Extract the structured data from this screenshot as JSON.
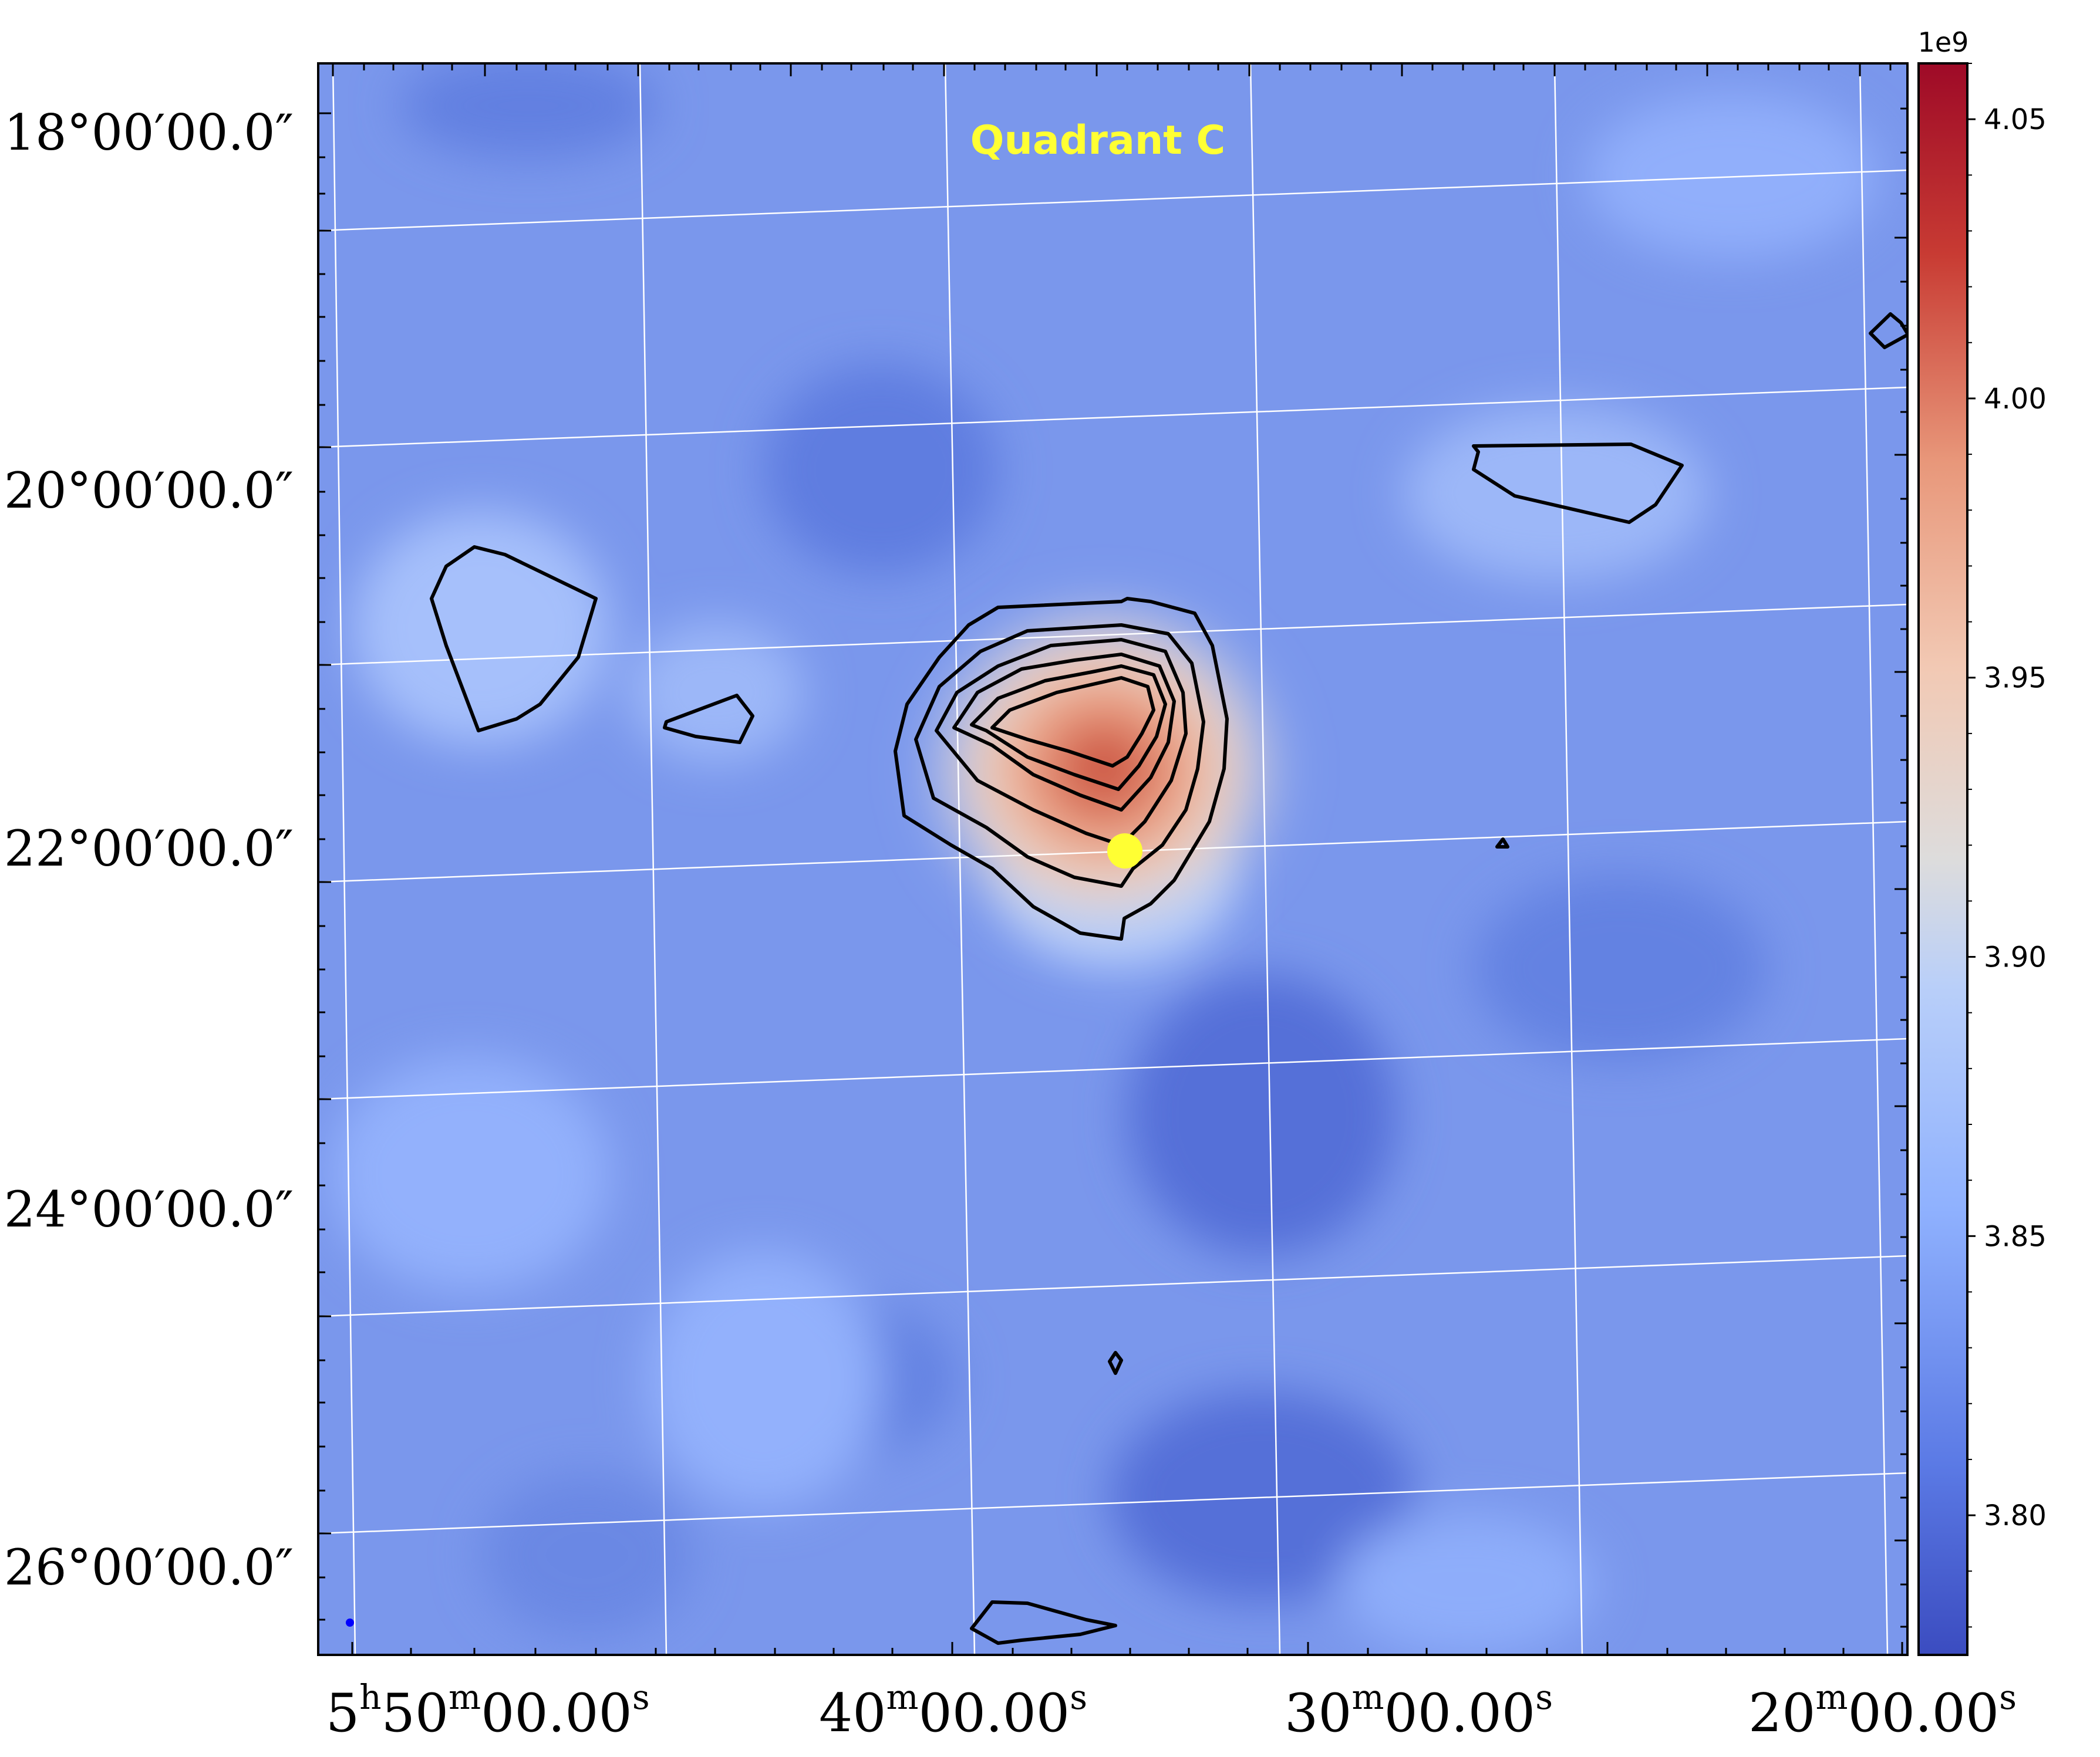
{
  "chart_data": {
    "type": "heatmap",
    "title": "Quadrant C",
    "xlabel": "",
    "ylabel": "",
    "colormap": "coolwarm",
    "colorbar": {
      "offset_label": "1e9",
      "ticks": [
        "3.80",
        "3.85",
        "3.90",
        "3.95",
        "4.00",
        "4.05"
      ],
      "tick_values": [
        3.8,
        3.85,
        3.9,
        3.95,
        4.0,
        4.05
      ],
      "range": [
        3.775,
        4.06
      ]
    },
    "x_axis": {
      "ticks": [
        {
          "label_main": "5",
          "sup1": "h",
          "label_mid": "50",
          "sup2": "m",
          "label_sec": "00.00",
          "sup3": "s"
        },
        {
          "label_main": "",
          "sup1": "",
          "label_mid": "40",
          "sup2": "m",
          "label_sec": "00.00",
          "sup3": "s"
        },
        {
          "label_main": "",
          "sup1": "",
          "label_mid": "30",
          "sup2": "m",
          "label_sec": "00.00",
          "sup3": "s"
        },
        {
          "label_main": "",
          "sup1": "",
          "label_mid": "20",
          "sup2": "m",
          "label_sec": "00.00",
          "sup3": "s"
        }
      ]
    },
    "y_axis": {
      "ticks": [
        "18°00′00.0″",
        "20°00′00.0″",
        "22°00′00.0″",
        "24°00′00.0″",
        "26°00′00.0″"
      ]
    },
    "grid": true,
    "contours": "black",
    "markers": [
      {
        "name": "source",
        "color": "#ffff33",
        "shape": "circle"
      },
      {
        "name": "beam",
        "color": "#0000ff",
        "shape": "dot"
      }
    ],
    "title_color": "#ffff33",
    "peak_value": 4.06
  }
}
